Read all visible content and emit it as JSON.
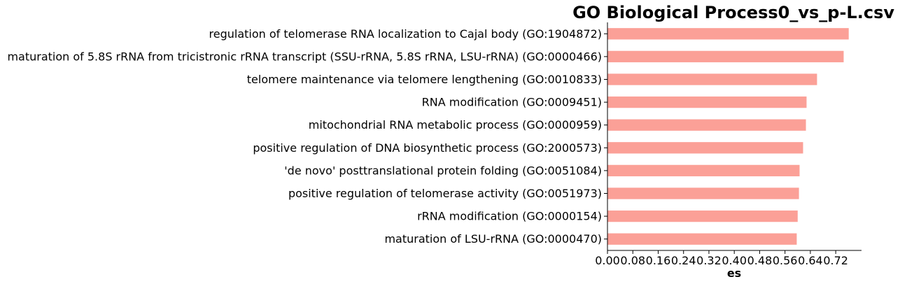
{
  "chart_data": {
    "type": "bar",
    "orientation": "horizontal",
    "title": "GO Biological Process0_vs_p-L.csv",
    "xlabel": "es",
    "ylabel": "",
    "xlim": [
      0,
      0.8
    ],
    "xticks": [
      "0.00",
      "0.08",
      "0.16",
      "0.24",
      "0.32",
      "0.40",
      "0.48",
      "0.56",
      "0.64",
      "0.72"
    ],
    "bar_color": "#fba097",
    "grid": false,
    "categories": [
      "regulation of telomerase RNA localization to Cajal body (GO:1904872)",
      "maturation of 5.8S rRNA from tricistronic rRNA transcript (SSU-rRNA, 5.8S rRNA, LSU-rRNA) (GO:0000466)",
      "telomere maintenance via telomere lengthening (GO:0010833)",
      "RNA modification (GO:0009451)",
      "mitochondrial RNA metabolic process (GO:0000959)",
      "positive regulation of DNA biosynthetic process (GO:2000573)",
      "'de novo' posttranslational protein folding (GO:0051084)",
      "positive regulation of telomerase activity (GO:0051973)",
      "rRNA modification (GO:0000154)",
      "maturation of LSU-rRNA (GO:0000470)"
    ],
    "values": [
      0.761,
      0.745,
      0.661,
      0.628,
      0.626,
      0.617,
      0.606,
      0.604,
      0.6,
      0.597
    ]
  }
}
